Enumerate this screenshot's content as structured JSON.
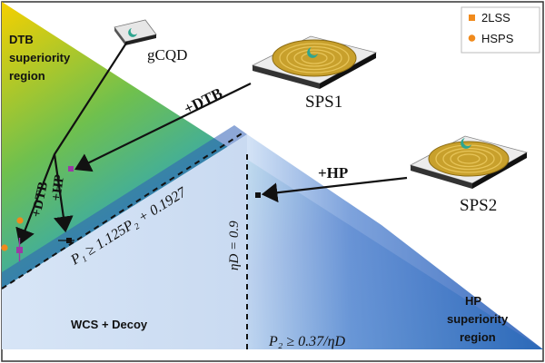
{
  "regions": {
    "dtb_line1": "DTB",
    "dtb_line2": "superiority",
    "dtb_line3": "region",
    "hp_line1": "HP",
    "hp_line2": "superiority",
    "hp_line3": "region",
    "wcs": "WCS + Decoy"
  },
  "legend": {
    "items": [
      {
        "label": "2LSS",
        "marker": "square",
        "color": "#f08a1c"
      },
      {
        "label": "HSPS",
        "marker": "circle",
        "color": "#f08a1c"
      }
    ]
  },
  "sources": {
    "gcqd": "gCQD",
    "sps1": "SPS1",
    "sps2": "SPS2"
  },
  "arrows": {
    "sps1": "+DTB",
    "sps2": "+HP",
    "gcqd_dtb": "+DTB",
    "gcqd_hp": "+HP"
  },
  "bounds": {
    "diagonal": "P₁ ≥ 1.125P₂ + 0.1927",
    "vertical_eta": "ηD = 0.9",
    "bottom": "P₂ ≥ 0.37/ηD"
  },
  "colors": {
    "green": "#62c24a",
    "blue": "#2a5fb8",
    "light_blue": "#cfe0f5",
    "orange": "#f08a1c",
    "purple": "#9b3aa6",
    "coil": "#c8a02c"
  }
}
